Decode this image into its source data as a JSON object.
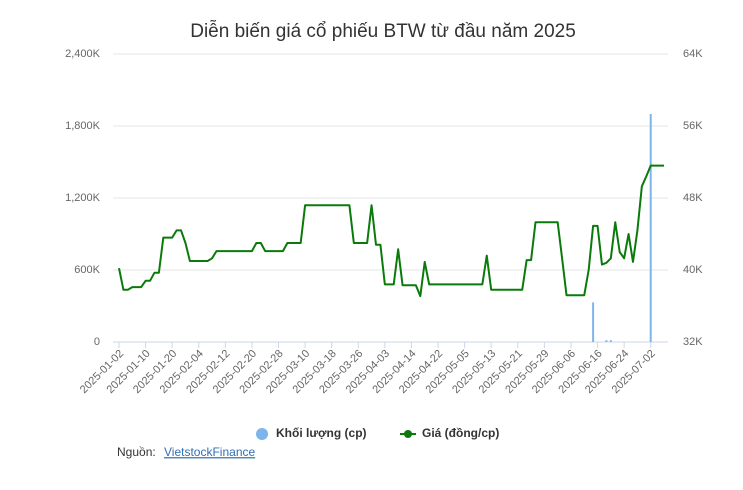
{
  "chart_data": {
    "type": "bar-line",
    "title": "Diễn biến giá cổ phiếu BTW từ đầu năm 2025",
    "categories": [
      "2025-01-02",
      null,
      null,
      null,
      null,
      null,
      "2025-01-10",
      null,
      null,
      null,
      null,
      null,
      "2025-01-20",
      null,
      null,
      null,
      null,
      null,
      "2025-02-04",
      null,
      null,
      null,
      null,
      null,
      "2025-02-12",
      null,
      null,
      null,
      null,
      null,
      "2025-02-20",
      null,
      null,
      null,
      null,
      null,
      "2025-02-28",
      null,
      null,
      null,
      null,
      null,
      "2025-03-10",
      null,
      null,
      null,
      null,
      null,
      "2025-03-18",
      null,
      null,
      null,
      null,
      null,
      "2025-03-26",
      null,
      null,
      null,
      null,
      null,
      "2025-04-03",
      null,
      null,
      null,
      null,
      null,
      "2025-04-14",
      null,
      null,
      null,
      null,
      null,
      "2025-04-22",
      null,
      null,
      null,
      null,
      null,
      "2025-05-05",
      null,
      null,
      null,
      null,
      null,
      "2025-05-13",
      null,
      null,
      null,
      null,
      null,
      "2025-05-21",
      null,
      null,
      null,
      null,
      null,
      "2025-05-29",
      null,
      null,
      null,
      null,
      null,
      "2025-06-06",
      null,
      null,
      null,
      null,
      null,
      "2025-06-16",
      null,
      null,
      null,
      null,
      null,
      "2025-06-24",
      null,
      null,
      null,
      null,
      null,
      "2025-07-02",
      null,
      null,
      null
    ],
    "series": [
      {
        "name": "Khối lượng (cp)",
        "kind": "bar",
        "color": "#7cb5ec",
        "values": [
          0,
          0,
          0,
          0,
          0,
          0,
          0,
          0,
          0,
          0,
          0,
          0,
          0,
          0,
          0,
          0,
          0,
          0,
          0,
          0,
          0,
          0,
          0,
          0,
          0,
          0,
          0,
          0,
          0,
          0,
          0,
          0,
          0,
          0,
          0,
          0,
          0,
          0,
          0,
          0,
          0,
          0,
          0,
          0,
          0,
          0,
          0,
          0,
          0,
          0,
          0,
          0,
          0,
          0,
          0,
          0,
          0,
          0,
          0,
          0,
          0,
          0,
          0,
          0,
          0,
          0,
          0,
          0,
          0,
          0,
          0,
          0,
          0,
          0,
          0,
          0,
          0,
          0,
          0,
          0,
          0,
          0,
          0,
          0,
          0,
          0,
          0,
          0,
          0,
          0,
          0,
          0,
          0,
          0,
          0,
          0,
          0,
          0,
          0,
          0,
          0,
          0,
          0,
          0,
          0,
          0,
          0,
          330000,
          0,
          0,
          15000,
          15000,
          0,
          0,
          0,
          0,
          0,
          0,
          0,
          0,
          1900000,
          0,
          0,
          0
        ]
      },
      {
        "name": "Giá (đồng/cp)",
        "kind": "line",
        "axis": "y2",
        "color": "#0a7a0a",
        "values": [
          40200,
          37800,
          37800,
          38100,
          38100,
          38100,
          38800,
          38800,
          39700,
          39700,
          43600,
          43600,
          43600,
          44400,
          44400,
          43000,
          41000,
          41000,
          41000,
          41000,
          41000,
          41300,
          42100,
          42100,
          42100,
          42100,
          42100,
          42100,
          42100,
          42100,
          42100,
          43000,
          43000,
          42100,
          42100,
          42100,
          42100,
          42100,
          43000,
          43000,
          43000,
          43000,
          47200,
          47200,
          47200,
          47200,
          47200,
          47200,
          47200,
          47200,
          47200,
          47200,
          47200,
          43000,
          43000,
          43000,
          43000,
          47200,
          42800,
          42800,
          38400,
          38400,
          38400,
          42300,
          38300,
          38300,
          38300,
          38300,
          37100,
          40900,
          38400,
          38400,
          38400,
          38400,
          38400,
          38400,
          38400,
          38400,
          38400,
          38400,
          38400,
          38400,
          38400,
          41600,
          37800,
          37800,
          37800,
          37800,
          37800,
          37800,
          37800,
          37800,
          41100,
          41100,
          45300,
          45300,
          45300,
          45300,
          45300,
          45300,
          41300,
          37200,
          37200,
          37200,
          37200,
          37200,
          40000,
          44900,
          44900,
          40600,
          40800,
          41300,
          45300,
          42000,
          41300,
          44000,
          40900,
          44400,
          49300,
          50400,
          51600,
          51600,
          51600,
          51600
        ]
      }
    ],
    "ylim": [
      0,
      2400000
    ],
    "yticks": [
      0,
      {
        "value": 600000,
        "label": "600K"
      },
      {
        "value": 1200000,
        "label": "1,200K"
      },
      {
        "value": 1800000,
        "label": "1,800K"
      },
      {
        "value": 2400000,
        "label": "2,400K"
      }
    ],
    "y2lim": [
      32000,
      64000
    ],
    "y2ticks": [
      {
        "value": 32000,
        "label": "32K"
      },
      {
        "value": 40000,
        "label": "40K"
      },
      {
        "value": 48000,
        "label": "48K"
      },
      {
        "value": 56000,
        "label": "56K"
      },
      {
        "value": 64000,
        "label": "64K"
      }
    ],
    "grid": true,
    "source_label": "Nguồn:",
    "source_link": "VietstockFinance"
  }
}
